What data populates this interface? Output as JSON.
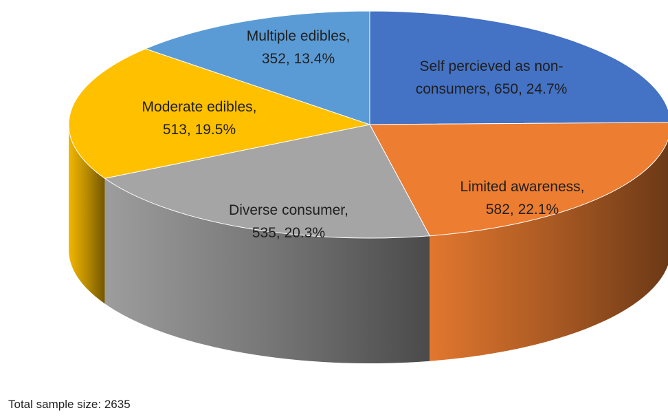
{
  "chart_data": {
    "type": "pie",
    "style": "3d",
    "slices": [
      {
        "label": "Self percieved as non-consumers",
        "label_lines": [
          "Self percieved as non-",
          "consumers, 650, 24.7%"
        ],
        "value": 650,
        "percent": 24.7,
        "color": "#4472C4"
      },
      {
        "label": "Limited awareness",
        "label_lines": [
          "Limited awareness,",
          "582, 22.1%"
        ],
        "value": 582,
        "percent": 22.1,
        "color": "#ED7D31"
      },
      {
        "label": "Diverse consumer",
        "label_lines": [
          "Diverse consumer,",
          "535, 20.3%"
        ],
        "value": 535,
        "percent": 20.3,
        "color": "#A5A5A5"
      },
      {
        "label": "Moderate edibles",
        "label_lines": [
          "Moderate edibles,",
          "513, 19.5%"
        ],
        "value": 513,
        "percent": 19.5,
        "color": "#FFC000"
      },
      {
        "label": "Multiple edibles",
        "label_lines": [
          "Multiple edibles,",
          "352, 13.4%"
        ],
        "value": 352,
        "percent": 13.4,
        "color": "#5B9BD5"
      }
    ],
    "legend": "none"
  },
  "footnote": "Total sample size: 2635"
}
